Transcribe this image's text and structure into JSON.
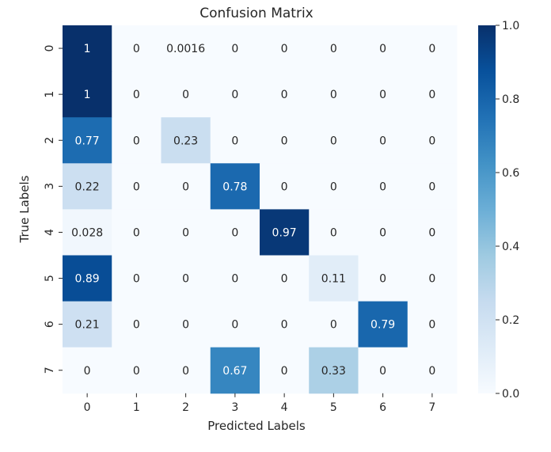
{
  "chart_data": {
    "type": "heatmap",
    "title": "Confusion Matrix",
    "xlabel": "Predicted Labels",
    "ylabel": "True Labels",
    "x_categories": [
      "0",
      "1",
      "2",
      "3",
      "4",
      "5",
      "6",
      "7"
    ],
    "y_categories": [
      "0",
      "1",
      "2",
      "3",
      "4",
      "5",
      "6",
      "7"
    ],
    "values": [
      [
        1,
        0,
        0.0016,
        0,
        0,
        0,
        0,
        0
      ],
      [
        1,
        0,
        0,
        0,
        0,
        0,
        0,
        0
      ],
      [
        0.77,
        0,
        0.23,
        0,
        0,
        0,
        0,
        0
      ],
      [
        0.22,
        0,
        0,
        0.78,
        0,
        0,
        0,
        0
      ],
      [
        0.028,
        0,
        0,
        0,
        0.97,
        0,
        0,
        0
      ],
      [
        0.89,
        0,
        0,
        0,
        0,
        0.11,
        0,
        0
      ],
      [
        0.21,
        0,
        0,
        0,
        0,
        0,
        0.79,
        0
      ],
      [
        0,
        0,
        0,
        0.67,
        0,
        0.33,
        0,
        0
      ]
    ],
    "annotations": [
      [
        "1",
        "0",
        "0.0016",
        "0",
        "0",
        "0",
        "0",
        "0"
      ],
      [
        "1",
        "0",
        "0",
        "0",
        "0",
        "0",
        "0",
        "0"
      ],
      [
        "0.77",
        "0",
        "0.23",
        "0",
        "0",
        "0",
        "0",
        "0"
      ],
      [
        "0.22",
        "0",
        "0",
        "0.78",
        "0",
        "0",
        "0",
        "0"
      ],
      [
        "0.028",
        "0",
        "0",
        "0",
        "0.97",
        "0",
        "0",
        "0"
      ],
      [
        "0.89",
        "0",
        "0",
        "0",
        "0",
        "0.11",
        "0",
        "0"
      ],
      [
        "0.21",
        "0",
        "0",
        "0",
        "0",
        "0",
        "0.79",
        "0"
      ],
      [
        "0",
        "0",
        "0",
        "0.67",
        "0",
        "0.33",
        "0",
        "0"
      ]
    ],
    "colormap": "Blues",
    "colorbar": {
      "range": [
        0.0,
        1.0
      ],
      "ticks": [
        0.0,
        0.2,
        0.4,
        0.6,
        0.8,
        1.0
      ],
      "tick_labels": [
        "0.0",
        "0.2",
        "0.4",
        "0.6",
        "0.8",
        "1.0"
      ]
    },
    "annotation_colors": {
      "light": "#ffffff",
      "dark": "#262626"
    }
  }
}
